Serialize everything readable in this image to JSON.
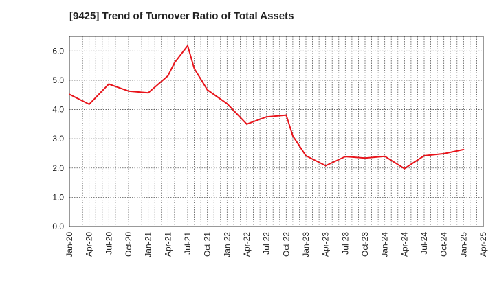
{
  "chart_data": {
    "type": "line",
    "title": "[9425]  Trend of Turnover Ratio of Total Assets",
    "xlabel": "",
    "ylabel": "",
    "ylim": [
      0,
      6.5
    ],
    "y_ticks": [
      "0.0",
      "1.0",
      "2.0",
      "3.0",
      "4.0",
      "5.0",
      "6.0"
    ],
    "y_tick_values": [
      0,
      1,
      2,
      3,
      4,
      5,
      6
    ],
    "x_ticks": [
      "Jan-20",
      "Apr-20",
      "Jul-20",
      "Oct-20",
      "Jan-21",
      "Apr-21",
      "Jul-21",
      "Oct-21",
      "Jan-22",
      "Apr-22",
      "Jul-22",
      "Oct-22",
      "Jan-23",
      "Apr-23",
      "Jul-23",
      "Oct-23",
      "Jan-24",
      "Apr-24",
      "Jul-24",
      "Oct-24",
      "Jan-25",
      "Apr-25"
    ],
    "grid": true,
    "line_color": "#e8141b",
    "series": [
      {
        "x": [
          "Jan-20",
          "Apr-20",
          "Jul-20",
          "Oct-20",
          "Jan-21",
          "Apr-21",
          "May-21",
          "Jul-21",
          "Aug-21",
          "Oct-21",
          "Jan-22",
          "Apr-22",
          "Jul-22",
          "Oct-22",
          "Nov-22",
          "Jan-23",
          "Apr-23",
          "Jul-23",
          "Oct-23",
          "Jan-24",
          "Apr-24",
          "Jul-24",
          "Oct-24",
          "Jan-25"
        ],
        "values": [
          4.52,
          4.18,
          4.87,
          4.63,
          4.57,
          5.15,
          5.6,
          6.18,
          5.4,
          4.67,
          4.2,
          3.5,
          3.75,
          3.81,
          3.1,
          2.42,
          2.08,
          2.39,
          2.34,
          2.4,
          1.98,
          2.42,
          2.49,
          2.63
        ]
      }
    ]
  }
}
